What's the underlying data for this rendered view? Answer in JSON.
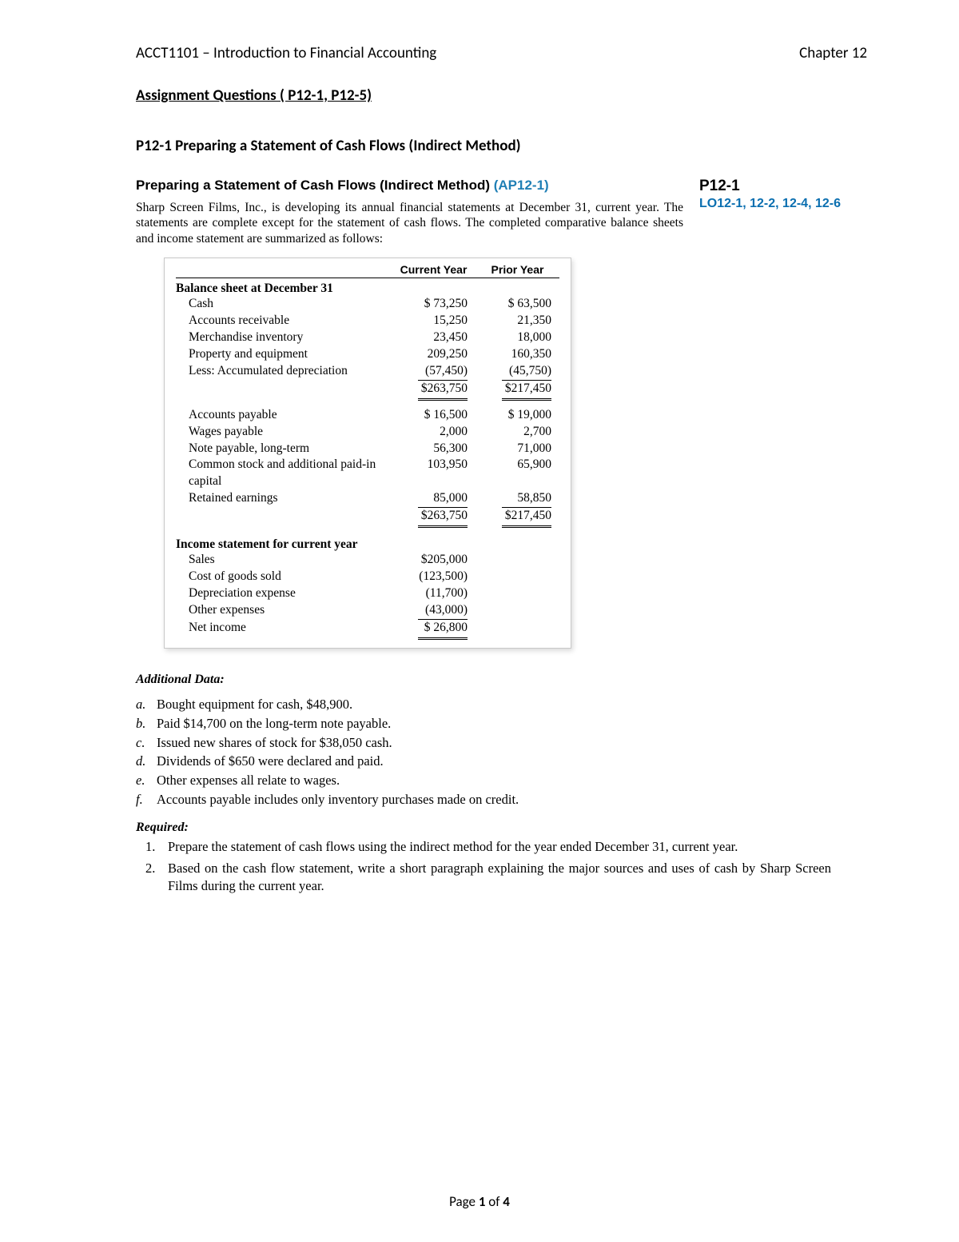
{
  "header": {
    "course": "ACCT1101 – Introduction to Financial Accounting",
    "chapter": "Chapter 12"
  },
  "assignment_title": "Assignment Questions ( P12-1, P12-5)",
  "problem_heading": "P12-1 Preparing a Statement of Cash Flows (Indirect Method)",
  "subtitle_prefix": "Preparing a Statement of Cash Flows (Indirect Method) ",
  "ap_code": "(AP12-1)",
  "p_code": "P12-1",
  "lo_line": "LO12-1, 12-2, 12-4, 12-6",
  "intro": "Sharp Screen Films, Inc., is developing its annual financial statements at December 31, current year. The statements are complete except for the statement of cash flows. The completed comparative balance sheets and income statement are summarized as follows:",
  "table": {
    "col1": "Current Year",
    "col2": "Prior Year",
    "section1": "Balance sheet at December 31",
    "bs_rows": [
      {
        "label": "Cash",
        "cy": "$  73,250",
        "py": "$  63,500"
      },
      {
        "label": "Accounts receivable",
        "cy": "15,250",
        "py": "21,350"
      },
      {
        "label": "Merchandise inventory",
        "cy": "23,450",
        "py": "18,000"
      },
      {
        "label": "Property and equipment",
        "cy": "209,250",
        "py": "160,350"
      },
      {
        "label": "Less: Accumulated depreciation",
        "cy": "(57,450)",
        "py": "(45,750)",
        "underline": true
      }
    ],
    "assets_total": {
      "cy": "$263,750",
      "py": "$217,450"
    },
    "le_rows": [
      {
        "label": "Accounts payable",
        "cy": "$  16,500",
        "py": "$  19,000"
      },
      {
        "label": "Wages payable",
        "cy": "2,000",
        "py": "2,700"
      },
      {
        "label": "Note payable, long-term",
        "cy": "56,300",
        "py": "71,000"
      },
      {
        "label": "Common stock and additional paid-in capital",
        "cy": "103,950",
        "py": "65,900"
      },
      {
        "label": "Retained earnings",
        "cy": "85,000",
        "py": "58,850",
        "underline": true
      }
    ],
    "le_total": {
      "cy": "$263,750",
      "py": "$217,450"
    },
    "section2": "Income statement for current year",
    "is_rows": [
      {
        "label": "Sales",
        "cy": "$205,000"
      },
      {
        "label": "Cost of goods sold",
        "cy": "(123,500)"
      },
      {
        "label": "Depreciation expense",
        "cy": "(11,700)"
      },
      {
        "label": "Other expenses",
        "cy": "(43,000)",
        "underline": true
      }
    ],
    "net_income": {
      "label": "Net income",
      "cy": "$  26,800"
    }
  },
  "additional_heading": "Additional Data:",
  "additional_items": [
    {
      "m": "a.",
      "t": "Bought equipment for cash, $48,900."
    },
    {
      "m": "b.",
      "t": "Paid $14,700 on the long-term note payable."
    },
    {
      "m": "c.",
      "t": "Issued new shares of stock for $38,050 cash."
    },
    {
      "m": "d.",
      "t": "Dividends of $650 were declared and paid."
    },
    {
      "m": "e.",
      "t": "Other expenses all relate to wages."
    },
    {
      "m": "f.",
      "t": "Accounts payable includes only inventory purchases made on credit."
    }
  ],
  "required_heading": "Required:",
  "required_items": [
    {
      "m": "1.",
      "t": "Prepare the statement of cash flows using the indirect method for the year ended December 31, current year."
    },
    {
      "m": "2.",
      "t": "Based on the cash flow statement, write a short paragraph explaining the major sources and uses of cash by Sharp Screen Films during the current year."
    }
  ],
  "footer": {
    "pre": "Page ",
    "n": "1",
    "mid": " of ",
    "total": "4"
  }
}
